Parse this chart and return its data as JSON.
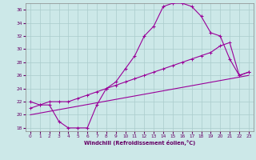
{
  "xlabel": "Windchill (Refroidissement éolien,°C)",
  "background_color": "#cce8e8",
  "grid_color": "#aacccc",
  "line_color": "#990099",
  "xlim": [
    -0.5,
    23.5
  ],
  "ylim": [
    17.5,
    37.0
  ],
  "yticks": [
    18,
    20,
    22,
    24,
    26,
    28,
    30,
    32,
    34,
    36
  ],
  "xticks": [
    0,
    1,
    2,
    3,
    4,
    5,
    6,
    7,
    8,
    9,
    10,
    11,
    12,
    13,
    14,
    15,
    16,
    17,
    18,
    19,
    20,
    21,
    22,
    23
  ],
  "line1_x": [
    0,
    1,
    2,
    3,
    4,
    5,
    6,
    7,
    8,
    9,
    10,
    11,
    12,
    13,
    14,
    15,
    16,
    17,
    18,
    19,
    20,
    21,
    22,
    23
  ],
  "line1_y": [
    22,
    21.5,
    21.5,
    19.0,
    18.0,
    18.0,
    18.0,
    21.5,
    24.0,
    25.0,
    27.0,
    29.0,
    32.0,
    33.5,
    36.5,
    37.0,
    37.0,
    36.5,
    35.0,
    32.5,
    32.0,
    28.5,
    26.0,
    26.5
  ],
  "line2_x": [
    0,
    23
  ],
  "line2_y": [
    20.0,
    26.0
  ],
  "line3_x": [
    0,
    1,
    2,
    3,
    4,
    5,
    6,
    7,
    8,
    9,
    10,
    11,
    12,
    13,
    14,
    15,
    16,
    17,
    18,
    19,
    20,
    21,
    22,
    23
  ],
  "line3_y": [
    21.0,
    21.5,
    22.0,
    22.0,
    22.0,
    22.5,
    23.0,
    23.5,
    24.0,
    24.5,
    25.0,
    25.5,
    26.0,
    26.5,
    27.0,
    27.5,
    28.0,
    28.5,
    29.0,
    29.5,
    30.5,
    31.0,
    26.0,
    26.5
  ]
}
